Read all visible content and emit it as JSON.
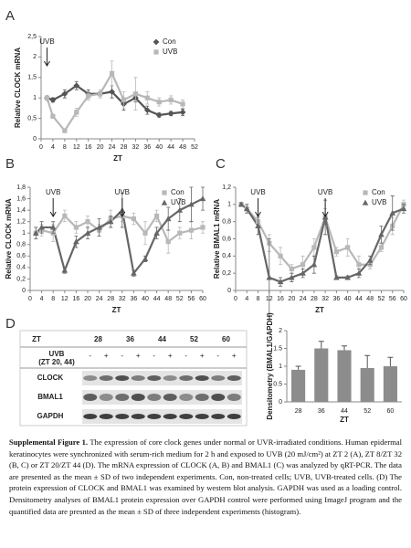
{
  "chart_data": [
    {
      "type": "line",
      "panel": "A",
      "xlabel": "ZT",
      "ylabel": "Relative CLOCK mRNA",
      "x": [
        2,
        4,
        8,
        12,
        16,
        20,
        24,
        28,
        32,
        36,
        40,
        44,
        48
      ],
      "xlim": [
        0,
        52
      ],
      "xticks": [
        0,
        4,
        8,
        12,
        16,
        20,
        24,
        28,
        32,
        36,
        40,
        44,
        48,
        52
      ],
      "ylim": [
        0,
        2.5
      ],
      "yticks": [
        0,
        {
          "value": 0.5,
          "label": "0,5"
        },
        1,
        {
          "value": 1.5,
          "label": "1,5"
        },
        2,
        {
          "value": 2.5,
          "label": "2,5"
        }
      ],
      "legend": "upper right",
      "series": [
        {
          "name": "Con",
          "color": "#555555",
          "marker": "diamond",
          "values": [
            1.0,
            0.95,
            1.1,
            1.3,
            1.1,
            1.1,
            1.15,
            0.85,
            1.0,
            0.7,
            0.58,
            0.62,
            0.65
          ],
          "errors": [
            0.05,
            0.05,
            0.1,
            0.1,
            0.1,
            0.05,
            0.15,
            0.15,
            0.1,
            0.1,
            0.05,
            0.05,
            0.08
          ]
        },
        {
          "name": "UVB",
          "color": "#b8b8b8",
          "marker": "square",
          "values": [
            1.0,
            0.55,
            0.2,
            0.65,
            1.05,
            1.1,
            1.6,
            0.95,
            1.1,
            1.0,
            0.9,
            0.95,
            0.85
          ],
          "errors": [
            0.05,
            0.05,
            0.05,
            0.1,
            0.1,
            0.1,
            0.3,
            0.2,
            0.4,
            0.15,
            0.1,
            0.1,
            0.1
          ]
        }
      ],
      "annotations": [
        {
          "text": "UVB",
          "x": 2
        }
      ]
    },
    {
      "type": "line",
      "panel": "B",
      "xlabel": "ZT",
      "ylabel": "Relative CLOCK mRNA",
      "x": [
        2,
        4,
        8,
        12,
        16,
        20,
        24,
        28,
        32,
        36,
        40,
        44,
        48,
        52,
        56,
        60
      ],
      "xlim": [
        0,
        60
      ],
      "xticks": [
        0,
        4,
        8,
        12,
        16,
        20,
        24,
        28,
        32,
        36,
        40,
        44,
        48,
        52,
        56,
        60
      ],
      "ylim": [
        0,
        1.8
      ],
      "yticks": [
        0,
        {
          "value": 0.2,
          "label": "0,2"
        },
        {
          "value": 0.4,
          "label": "0,4"
        },
        {
          "value": 0.6,
          "label": "0,6"
        },
        {
          "value": 0.8,
          "label": "0,8"
        },
        1,
        {
          "value": 1.2,
          "label": "1,2"
        },
        {
          "value": 1.4,
          "label": "1,4"
        },
        {
          "value": 1.6,
          "label": "1,6"
        },
        {
          "value": 1.8,
          "label": "1,8"
        }
      ],
      "legend": "upper right",
      "series": [
        {
          "name": "Con",
          "color": "#b8b8b8",
          "marker": "square",
          "values": [
            1.0,
            1.05,
            1.0,
            1.3,
            1.1,
            1.2,
            1.05,
            1.25,
            1.3,
            1.25,
            1.0,
            1.3,
            0.85,
            1.0,
            1.05,
            1.1
          ],
          "errors": [
            0.1,
            0.1,
            0.15,
            0.1,
            0.1,
            0.1,
            0.1,
            0.15,
            0.1,
            0.1,
            0.2,
            0.1,
            0.2,
            0.1,
            0.15,
            0.1
          ]
        },
        {
          "name": "UVB",
          "color": "#666666",
          "marker": "triangle",
          "values": [
            1.0,
            1.1,
            1.1,
            0.35,
            0.85,
            1.0,
            1.1,
            1.2,
            1.4,
            0.3,
            0.55,
            1.0,
            1.25,
            1.4,
            1.5,
            1.6
          ],
          "errors": [
            0.1,
            0.1,
            0.1,
            0.05,
            0.1,
            0.1,
            0.15,
            0.1,
            0.3,
            0.05,
            0.05,
            0.1,
            0.2,
            0.2,
            0.3,
            0.2
          ]
        }
      ],
      "annotations": [
        {
          "text": "UVB",
          "x": 8
        },
        {
          "text": "UVB",
          "x": 32
        }
      ]
    },
    {
      "type": "line",
      "panel": "C",
      "xlabel": "ZT",
      "ylabel": "Relative BMAL1 mRNA",
      "x": [
        2,
        4,
        8,
        12,
        16,
        20,
        24,
        28,
        32,
        36,
        40,
        44,
        48,
        52,
        56,
        60
      ],
      "xlim": [
        0,
        60
      ],
      "xticks": [
        0,
        4,
        8,
        12,
        16,
        20,
        24,
        28,
        32,
        36,
        40,
        44,
        48,
        52,
        56,
        60
      ],
      "ylim": [
        0,
        1.2
      ],
      "yticks": [
        0,
        {
          "value": 0.2,
          "label": "0,2"
        },
        {
          "value": 0.4,
          "label": "0,4"
        },
        {
          "value": 0.6,
          "label": "0,6"
        },
        {
          "value": 0.8,
          "label": "0,8"
        },
        1,
        {
          "value": 1.2,
          "label": "1,2"
        }
      ],
      "legend": "upper right",
      "series": [
        {
          "name": "Con",
          "color": "#b8b8b8",
          "marker": "square",
          "values": [
            1.0,
            0.95,
            0.8,
            0.55,
            0.4,
            0.25,
            0.3,
            0.5,
            0.85,
            0.45,
            0.5,
            0.3,
            0.3,
            0.5,
            0.75,
            1.0
          ],
          "errors": [
            0.02,
            0.05,
            0.05,
            0.1,
            0.1,
            0.05,
            0.1,
            0.1,
            0.1,
            0.05,
            0.1,
            0.1,
            0.05,
            0.05,
            0.1,
            0.05
          ]
        },
        {
          "name": "UVB",
          "color": "#666666",
          "marker": "triangle",
          "values": [
            1.0,
            0.95,
            0.75,
            0.15,
            0.1,
            0.15,
            0.2,
            0.3,
            0.85,
            0.15,
            0.15,
            0.2,
            0.35,
            0.65,
            0.9,
            0.95
          ],
          "errors": [
            0.02,
            0.05,
            0.1,
            0.45,
            0.05,
            0.05,
            0.05,
            0.1,
            0.2,
            0.02,
            0.02,
            0.05,
            0.05,
            0.1,
            0.2,
            0.05
          ]
        }
      ],
      "annotations": [
        {
          "text": "UVB",
          "x": 8
        },
        {
          "text": "UVB",
          "x": 32
        }
      ]
    },
    {
      "type": "bar",
      "panel": "D",
      "xlabel": "ZT",
      "ylabel": "Densitometry (BMAL1/GAPDH)",
      "categories": [
        "28",
        "36",
        "44",
        "52",
        "60"
      ],
      "values": [
        0.9,
        1.5,
        1.45,
        0.95,
        1.0
      ],
      "errors": [
        0.1,
        0.2,
        0.12,
        0.35,
        0.25
      ],
      "color": "#8c8c8c",
      "ylim": [
        0,
        2
      ],
      "yticks": [
        0,
        0.5,
        1,
        1.5,
        2
      ]
    }
  ],
  "blot": {
    "zt_label": "ZT",
    "timepoints": [
      "28",
      "36",
      "44",
      "52",
      "60"
    ],
    "treatment_label": "UVB",
    "treatment_sub": "(ZT 20, 44)",
    "lanes": [
      "-",
      "+",
      "-",
      "+",
      "-",
      "+",
      "-",
      "+",
      "-",
      "+"
    ],
    "proteins": [
      "CLOCK",
      "BMAL1",
      "GAPDH"
    ]
  },
  "caption": {
    "label": "Supplemental Figure 1.",
    "text": "The expression of core clock genes under normal or UVR-irradiated conditions. Human epidermal keratinocytes were synchronized with serum-rich medium for 2 h and exposed to UVB (20 mJ/cm²) at ZT 2 (A), ZT 8/ZT 32 (B, C) or ZT 20/ZT 44 (D). The mRNA expression of CLOCK (A, B) and BMAL1 (C) was analyzed by qRT-PCR. The data are presented as the mean ± SD of two independent experiments. Con, non-treated cells; UVB, UVB-treated cells. (D) The protein expression of CLOCK and BMAL1 was examined by western blot analysis. GAPDH was used as a loading control. Densitometry analyses of BMAL1 protein expression over GAPDH control were performed using ImageJ program and the quantified data are presnted as the mean ± SD of three independent experiments (histogram)."
  }
}
